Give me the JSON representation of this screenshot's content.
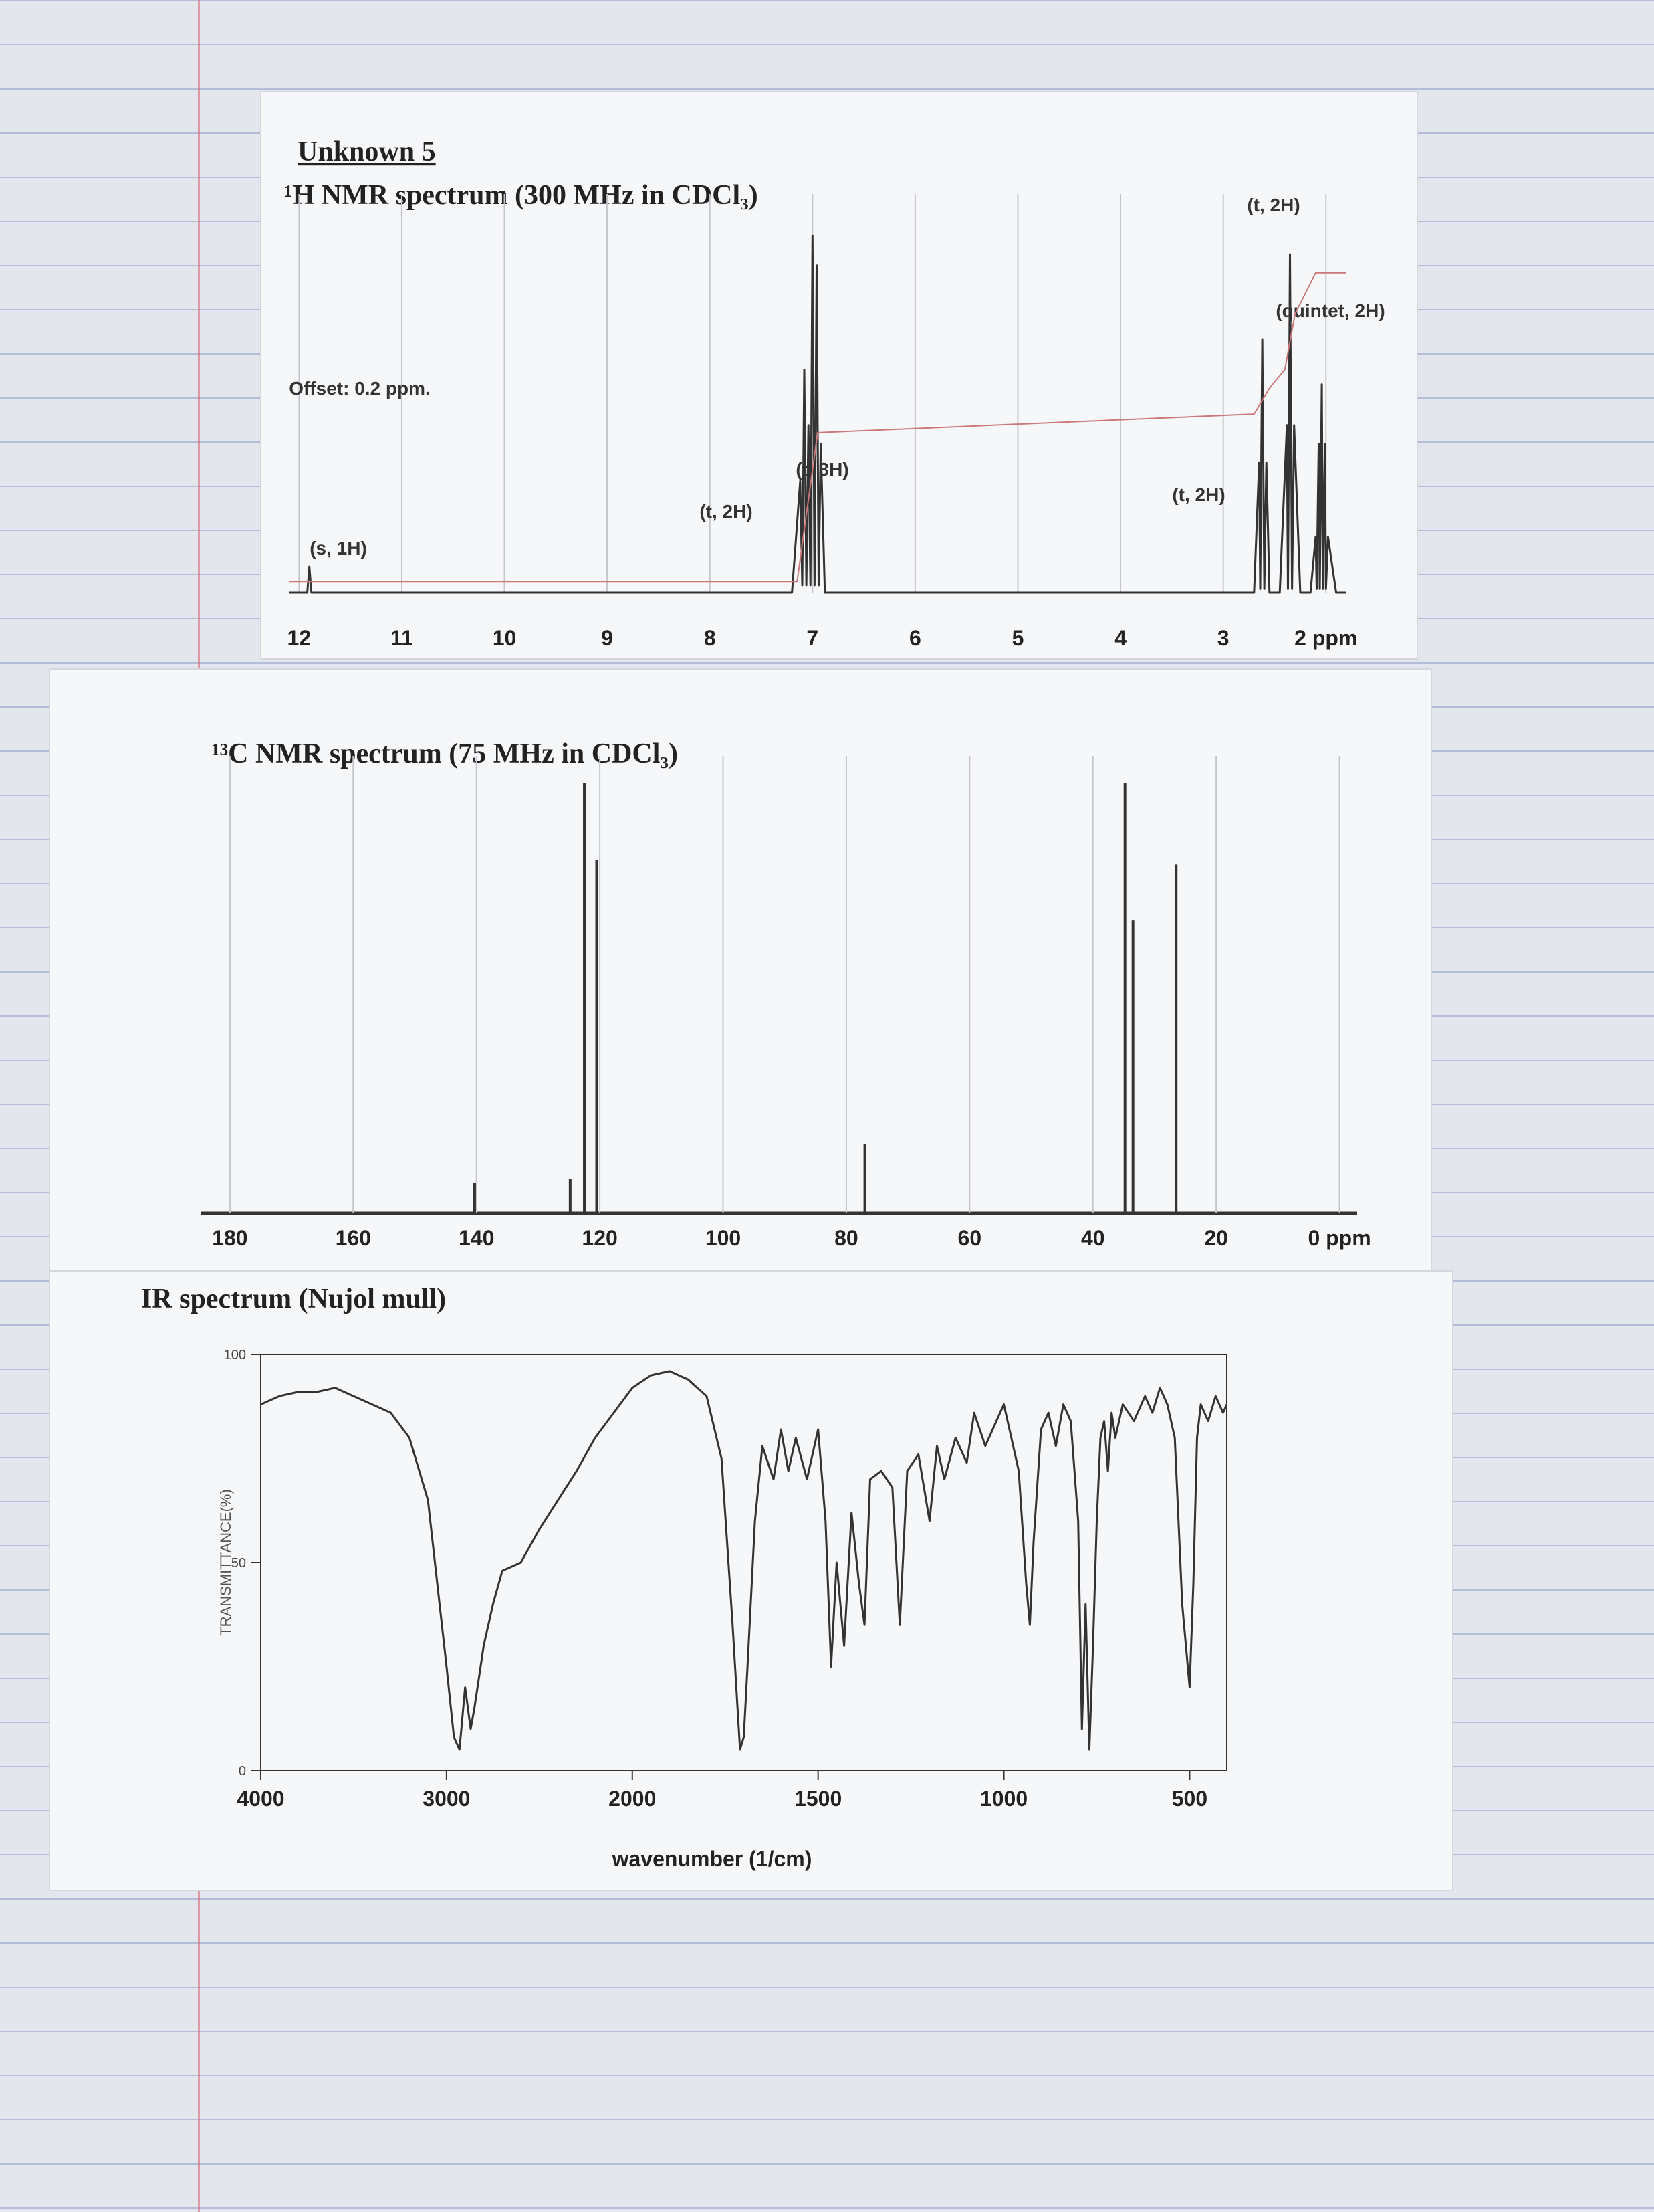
{
  "chart_data": [
    {
      "type": "line",
      "title": "Unknown 5",
      "subtitle": "¹H NMR spectrum (300 MHz in CDCl₃)",
      "xlim": [
        12.1,
        1.8
      ],
      "ylim": [
        0,
        100
      ],
      "xticks": [
        12,
        11,
        10,
        9,
        8,
        7,
        6,
        5,
        4,
        3,
        {
          "value": 2,
          "label": "2 ppm"
        }
      ],
      "grid": true,
      "annotations": [
        "(s, 1H)",
        "Offset: 0.2 ppm.",
        "(t, 2H)",
        "(t, 3H)",
        "(t, 2H)",
        "(t, 2H)",
        "(quintet, 2H)"
      ],
      "series": [
        {
          "color": "#333333",
          "x": [
            12.1,
            12.0,
            11.92,
            11.9,
            11.88,
            11.8,
            7.2,
            7.12,
            7.1,
            7.08,
            7.06,
            7.04,
            7.02,
            7.0,
            6.98,
            6.96,
            6.94,
            6.92,
            6.88,
            2.7,
            2.65,
            2.64,
            2.62,
            2.6,
            2.58,
            2.55,
            2.45,
            2.38,
            2.37,
            2.35,
            2.33,
            2.31,
            2.25,
            2.15,
            2.1,
            2.09,
            2.07,
            2.06,
            2.04,
            2.03,
            2.01,
            2.0,
            1.98,
            1.9,
            1.8
          ],
          "values": [
            0,
            0,
            0,
            7,
            0,
            0,
            0,
            30,
            2,
            60,
            2,
            45,
            2,
            96,
            2,
            88,
            2,
            40,
            0,
            0,
            35,
            1,
            68,
            1,
            35,
            0,
            0,
            45,
            1,
            91,
            1,
            45,
            0,
            0,
            15,
            1,
            40,
            1,
            56,
            1,
            40,
            1,
            15,
            0,
            0
          ]
        },
        {
          "color": "#cc7777",
          "x": [
            12.1,
            7.15,
            6.95,
            2.7,
            2.55,
            2.4,
            2.3,
            2.1,
            1.95,
            1.8
          ],
          "values": [
            3,
            3,
            43,
            48,
            55,
            60,
            75,
            86,
            86,
            86
          ]
        }
      ]
    },
    {
      "type": "stem",
      "title": "¹³C NMR spectrum (75 MHz in CDCl₃)",
      "xlim": [
        184,
        -2
      ],
      "ylim": [
        0,
        100
      ],
      "xticks": [
        180,
        160,
        140,
        120,
        100,
        80,
        60,
        40,
        20,
        {
          "value": 0,
          "label": "0 ppm"
        }
      ],
      "grid": true,
      "color": "#333333",
      "x": [
        140.3,
        124.8,
        122.5,
        120.5,
        77.0,
        34.8,
        33.5,
        26.5
      ],
      "values": [
        7,
        8,
        100,
        82,
        16,
        100,
        68,
        81
      ]
    },
    {
      "type": "line",
      "title": "IR spectrum (Nujol mull)",
      "xlabel": "wavenumber (1/cm)",
      "ylabel": "TRANSMITTANCE(%)",
      "xscale": "piecewise",
      "xlim": [
        4000,
        400
      ],
      "ylim": [
        0,
        100
      ],
      "xticks": [
        4000,
        3000,
        2000,
        1500,
        1000,
        500
      ],
      "yticks": [
        0,
        50,
        100
      ],
      "color": "#333333",
      "x": [
        4000,
        3900,
        3800,
        3700,
        3600,
        3500,
        3400,
        3300,
        3200,
        3100,
        3050,
        3000,
        2960,
        2930,
        2900,
        2870,
        2850,
        2800,
        2750,
        2700,
        2600,
        2500,
        2400,
        2300,
        2200,
        2100,
        2000,
        1950,
        1900,
        1850,
        1800,
        1760,
        1730,
        1710,
        1700,
        1690,
        1670,
        1650,
        1620,
        1600,
        1580,
        1560,
        1530,
        1500,
        1480,
        1465,
        1450,
        1430,
        1410,
        1390,
        1375,
        1360,
        1330,
        1300,
        1280,
        1260,
        1230,
        1200,
        1180,
        1160,
        1130,
        1100,
        1080,
        1050,
        1020,
        1000,
        980,
        960,
        940,
        930,
        920,
        900,
        880,
        860,
        840,
        820,
        800,
        790,
        780,
        770,
        760,
        750,
        740,
        730,
        720,
        710,
        700,
        680,
        650,
        620,
        600,
        580,
        560,
        540,
        520,
        500,
        490,
        480,
        470,
        450,
        430,
        410,
        400
      ],
      "values": [
        88,
        90,
        91,
        91,
        92,
        90,
        88,
        86,
        80,
        65,
        45,
        25,
        8,
        5,
        20,
        10,
        15,
        30,
        40,
        48,
        50,
        58,
        65,
        72,
        80,
        86,
        92,
        95,
        96,
        94,
        90,
        75,
        35,
        5,
        8,
        25,
        60,
        78,
        70,
        82,
        72,
        80,
        70,
        82,
        60,
        25,
        50,
        30,
        62,
        45,
        35,
        70,
        72,
        68,
        35,
        72,
        76,
        60,
        78,
        70,
        80,
        74,
        86,
        78,
        84,
        88,
        80,
        72,
        45,
        35,
        55,
        82,
        86,
        78,
        88,
        84,
        60,
        10,
        40,
        5,
        30,
        60,
        80,
        84,
        72,
        86,
        80,
        88,
        84,
        90,
        86,
        92,
        88,
        80,
        40,
        20,
        45,
        80,
        88,
        84,
        90,
        86,
        88
      ]
    }
  ]
}
